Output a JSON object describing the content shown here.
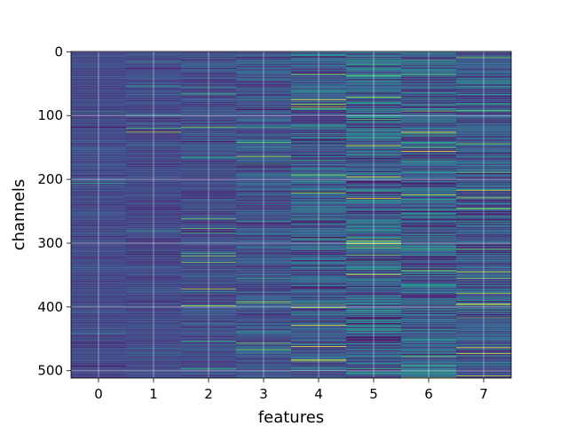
{
  "chart_data": {
    "type": "heatmap",
    "xlabel": "features",
    "ylabel": "channels",
    "x_ticks": [
      "0",
      "1",
      "2",
      "3",
      "4",
      "5",
      "6",
      "7"
    ],
    "y_ticks": [
      "0",
      "100",
      "200",
      "300",
      "400",
      "500"
    ],
    "n_features": 8,
    "n_channels": 512,
    "xlim": [
      -0.5,
      7.5
    ],
    "ylim": [
      511.5,
      -0.5
    ],
    "colormap": "viridis",
    "grid": true,
    "column_mean_level": [
      0.22,
      0.22,
      0.23,
      0.26,
      0.28,
      0.3,
      0.3,
      0.27
    ],
    "column_spread": [
      0.04,
      0.05,
      0.07,
      0.1,
      0.14,
      0.18,
      0.17,
      0.13
    ],
    "colors": {
      "background_dark": "#3b528b",
      "mid": "#21918c",
      "bright": "#fde725",
      "grid": "#ffffff"
    }
  }
}
